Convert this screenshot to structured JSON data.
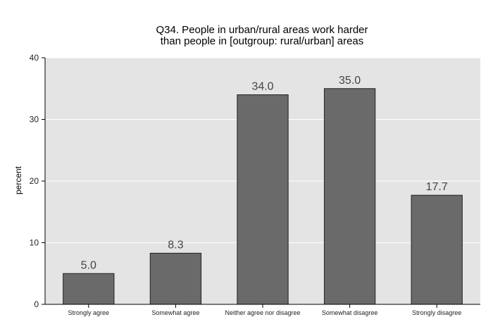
{
  "chart_data": {
    "type": "bar",
    "title": "Q34. People in urban/rural areas work harder",
    "subtitle": "than people in [outgroup: rural/urban] areas",
    "xlabel": "",
    "ylabel": "percent",
    "ylim": [
      0,
      40
    ],
    "yticks": [
      "0",
      "10",
      "20",
      "30",
      "40"
    ],
    "grid": true,
    "categories": [
      "Strongly agree",
      "Somewhat agree",
      "Neither agree nor disagree",
      "Somewhat disagree",
      "Strongly disagree"
    ],
    "values": [
      5.0,
      8.3,
      34.0,
      35.0,
      17.7
    ],
    "value_labels": [
      "5.0",
      "8.3",
      "34.0",
      "35.0",
      "17.7"
    ],
    "colors": {
      "bar": "#6a6a6a",
      "bar_stroke": "#222222",
      "plot_background": "#e4e4e4",
      "grid": "#ffffff"
    }
  }
}
